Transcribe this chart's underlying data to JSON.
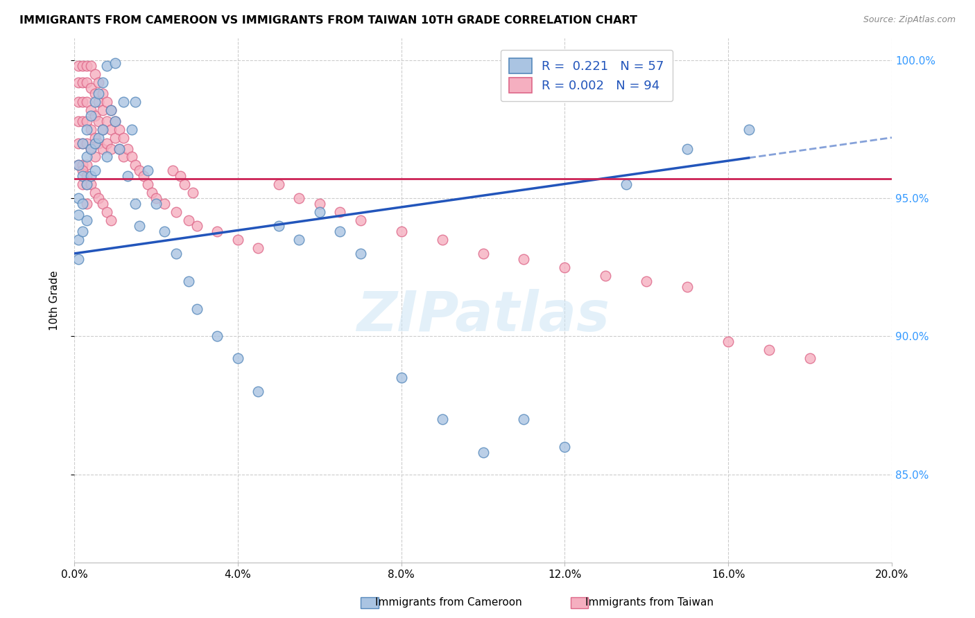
{
  "title": "IMMIGRANTS FROM CAMEROON VS IMMIGRANTS FROM TAIWAN 10TH GRADE CORRELATION CHART",
  "source": "Source: ZipAtlas.com",
  "ylabel": "10th Grade",
  "legend_label_cameroon": "Immigrants from Cameroon",
  "legend_label_taiwan": "Immigrants from Taiwan",
  "watermark": "ZIPatlas",
  "x_min": 0.0,
  "x_max": 0.2,
  "y_min": 0.818,
  "y_max": 1.008,
  "cameroon_R": 0.221,
  "cameroon_N": 57,
  "taiwan_R": 0.002,
  "taiwan_N": 94,
  "cameroon_color": "#aac4e2",
  "taiwan_color": "#f5afc0",
  "cameroon_edge_color": "#5588bb",
  "taiwan_edge_color": "#dd6688",
  "trend_cameroon_color": "#2255bb",
  "trend_taiwan_color": "#cc2255",
  "trend_cam_x0": 0.0,
  "trend_cam_y0": 0.93,
  "trend_cam_x1": 0.2,
  "trend_cam_y1": 0.972,
  "trend_cam_solid_end": 0.165,
  "trend_tai_x0": 0.0,
  "trend_tai_y0": 0.957,
  "trend_tai_x1": 0.2,
  "trend_tai_y1": 0.957,
  "y_ticks": [
    0.85,
    0.9,
    0.95,
    1.0
  ],
  "y_tick_labels_right": [
    "85.0%",
    "90.0%",
    "95.0%",
    "100.0%"
  ],
  "x_ticks": [
    0.0,
    0.04,
    0.08,
    0.12,
    0.16,
    0.2
  ],
  "x_tick_labels": [
    "0.0%",
    "4.0%",
    "8.0%",
    "12.0%",
    "16.0%",
    "20.0%"
  ],
  "cam_x": [
    0.001,
    0.001,
    0.001,
    0.001,
    0.001,
    0.002,
    0.002,
    0.002,
    0.002,
    0.003,
    0.003,
    0.003,
    0.003,
    0.004,
    0.004,
    0.004,
    0.005,
    0.005,
    0.005,
    0.006,
    0.006,
    0.007,
    0.007,
    0.008,
    0.008,
    0.009,
    0.01,
    0.01,
    0.011,
    0.012,
    0.013,
    0.014,
    0.015,
    0.016,
    0.018,
    0.02,
    0.022,
    0.025,
    0.028,
    0.03,
    0.035,
    0.04,
    0.045,
    0.05,
    0.055,
    0.06,
    0.065,
    0.07,
    0.08,
    0.09,
    0.1,
    0.11,
    0.12,
    0.135,
    0.15,
    0.165,
    0.015
  ],
  "cam_y": [
    0.962,
    0.95,
    0.944,
    0.935,
    0.928,
    0.97,
    0.958,
    0.948,
    0.938,
    0.975,
    0.965,
    0.955,
    0.942,
    0.98,
    0.968,
    0.958,
    0.985,
    0.97,
    0.96,
    0.988,
    0.972,
    0.992,
    0.975,
    0.998,
    0.965,
    0.982,
    0.999,
    0.978,
    0.968,
    0.985,
    0.958,
    0.975,
    0.948,
    0.94,
    0.96,
    0.948,
    0.938,
    0.93,
    0.92,
    0.91,
    0.9,
    0.892,
    0.88,
    0.94,
    0.935,
    0.945,
    0.938,
    0.93,
    0.885,
    0.87,
    0.858,
    0.87,
    0.86,
    0.955,
    0.968,
    0.975,
    0.985
  ],
  "tai_x": [
    0.001,
    0.001,
    0.001,
    0.001,
    0.001,
    0.001,
    0.002,
    0.002,
    0.002,
    0.002,
    0.002,
    0.002,
    0.002,
    0.003,
    0.003,
    0.003,
    0.003,
    0.003,
    0.003,
    0.003,
    0.003,
    0.004,
    0.004,
    0.004,
    0.004,
    0.004,
    0.005,
    0.005,
    0.005,
    0.005,
    0.005,
    0.006,
    0.006,
    0.006,
    0.006,
    0.007,
    0.007,
    0.007,
    0.007,
    0.008,
    0.008,
    0.008,
    0.009,
    0.009,
    0.009,
    0.01,
    0.01,
    0.011,
    0.011,
    0.012,
    0.012,
    0.013,
    0.014,
    0.015,
    0.016,
    0.017,
    0.018,
    0.019,
    0.02,
    0.022,
    0.025,
    0.028,
    0.03,
    0.035,
    0.04,
    0.045,
    0.05,
    0.055,
    0.06,
    0.065,
    0.07,
    0.08,
    0.09,
    0.1,
    0.11,
    0.12,
    0.13,
    0.14,
    0.15,
    0.16,
    0.17,
    0.18,
    0.002,
    0.003,
    0.004,
    0.005,
    0.006,
    0.007,
    0.008,
    0.009,
    0.024,
    0.026,
    0.027,
    0.029
  ],
  "tai_y": [
    0.998,
    0.992,
    0.985,
    0.978,
    0.97,
    0.962,
    0.998,
    0.992,
    0.985,
    0.978,
    0.97,
    0.962,
    0.955,
    0.998,
    0.992,
    0.985,
    0.978,
    0.97,
    0.962,
    0.955,
    0.948,
    0.998,
    0.99,
    0.982,
    0.975,
    0.968,
    0.995,
    0.988,
    0.98,
    0.972,
    0.965,
    0.992,
    0.985,
    0.978,
    0.97,
    0.988,
    0.982,
    0.975,
    0.968,
    0.985,
    0.978,
    0.97,
    0.982,
    0.975,
    0.968,
    0.978,
    0.972,
    0.975,
    0.968,
    0.972,
    0.965,
    0.968,
    0.965,
    0.962,
    0.96,
    0.958,
    0.955,
    0.952,
    0.95,
    0.948,
    0.945,
    0.942,
    0.94,
    0.938,
    0.935,
    0.932,
    0.955,
    0.95,
    0.948,
    0.945,
    0.942,
    0.938,
    0.935,
    0.93,
    0.928,
    0.925,
    0.922,
    0.92,
    0.918,
    0.898,
    0.895,
    0.892,
    0.96,
    0.958,
    0.955,
    0.952,
    0.95,
    0.948,
    0.945,
    0.942,
    0.96,
    0.958,
    0.955,
    0.952
  ]
}
